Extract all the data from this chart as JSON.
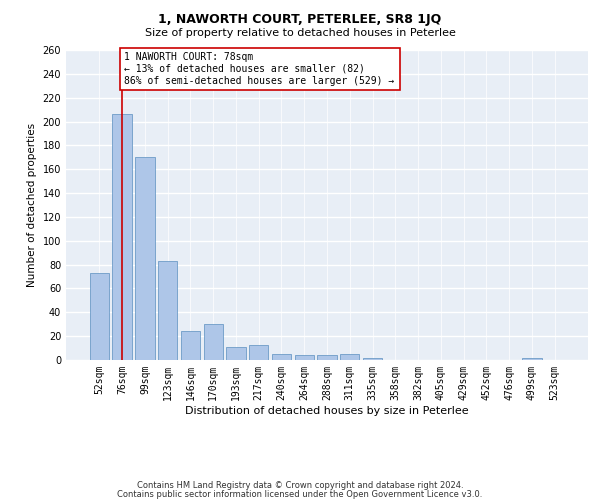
{
  "title": "1, NAWORTH COURT, PETERLEE, SR8 1JQ",
  "subtitle": "Size of property relative to detached houses in Peterlee",
  "xlabel": "Distribution of detached houses by size in Peterlee",
  "ylabel": "Number of detached properties",
  "bar_values": [
    73,
    206,
    170,
    83,
    24,
    30,
    11,
    13,
    5,
    4,
    4,
    5,
    2,
    0,
    0,
    0,
    0,
    0,
    0,
    2,
    0
  ],
  "bar_labels": [
    "52sqm",
    "76sqm",
    "99sqm",
    "123sqm",
    "146sqm",
    "170sqm",
    "193sqm",
    "217sqm",
    "240sqm",
    "264sqm",
    "288sqm",
    "311sqm",
    "335sqm",
    "358sqm",
    "382sqm",
    "405sqm",
    "429sqm",
    "452sqm",
    "476sqm",
    "499sqm",
    "523sqm"
  ],
  "bar_color": "#aec6e8",
  "bar_edge_color": "#5a8fc0",
  "background_color": "#e8eef6",
  "grid_color": "#ffffff",
  "vline_x": 1,
  "vline_color": "#cc0000",
  "annotation_text": "1 NAWORTH COURT: 78sqm\n← 13% of detached houses are smaller (82)\n86% of semi-detached houses are larger (529) →",
  "annotation_box_color": "#ffffff",
  "annotation_box_edge": "#cc0000",
  "ylim": [
    0,
    260
  ],
  "yticks": [
    0,
    20,
    40,
    60,
    80,
    100,
    120,
    140,
    160,
    180,
    200,
    220,
    240,
    260
  ],
  "footer_line1": "Contains HM Land Registry data © Crown copyright and database right 2024.",
  "footer_line2": "Contains public sector information licensed under the Open Government Licence v3.0.",
  "title_fontsize": 9,
  "subtitle_fontsize": 8,
  "xlabel_fontsize": 8,
  "ylabel_fontsize": 7.5,
  "tick_fontsize": 7,
  "annot_fontsize": 7,
  "footer_fontsize": 6
}
